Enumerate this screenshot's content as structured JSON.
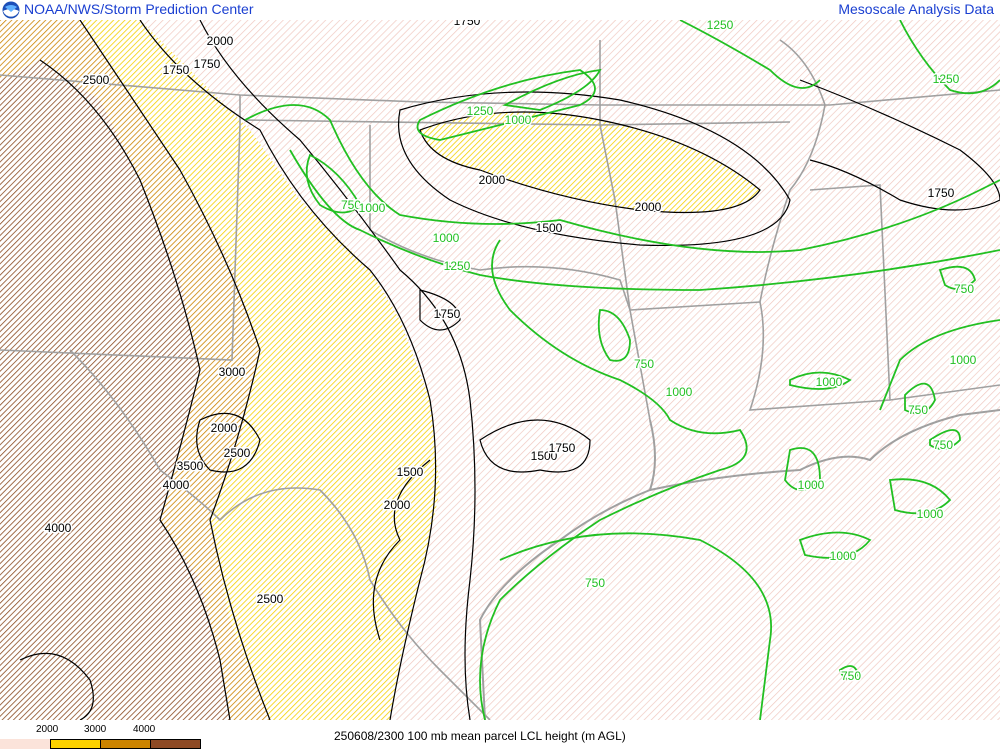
{
  "header": {
    "left_title": "NOAA/NWS/Storm Prediction Center",
    "right_title": "Mesoscale Analysis Data",
    "logo_icon": "noaa-logo-icon"
  },
  "map": {
    "parameter": "100 mb mean parcel LCL height",
    "units": "m AGL",
    "colors": {
      "contour_high": "#000000",
      "contour_low": "#22c022",
      "borders": "#a0a0a0",
      "hatch_base": "#f0c8c0",
      "hatch_2000": "#f5d000",
      "hatch_3000": "#cc8400",
      "hatch_4000": "#8a4a20"
    },
    "black_labels": [
      "1750",
      "2000",
      "1750",
      "1750",
      "2500",
      "2000",
      "2000",
      "1500",
      "1750",
      "1750",
      "3000",
      "2000",
      "2500",
      "3500",
      "4000",
      "4000",
      "1500",
      "1500",
      "1750",
      "2000",
      "2500"
    ],
    "green_labels": [
      "1250",
      "1250",
      "1250",
      "1000",
      "750",
      "1000",
      "1000",
      "1250",
      "750",
      "750",
      "1000",
      "1000",
      "1000",
      "750",
      "750",
      "1000",
      "1000",
      "1000",
      "750",
      "750"
    ]
  },
  "legend": {
    "ticks": [
      "2000",
      "3000",
      "4000"
    ],
    "colors": [
      "#fbe3da",
      "#fcd200",
      "#cc8400",
      "#8e4a24"
    ]
  },
  "footer": {
    "caption": "250608/2300 100 mb mean parcel LCL height (m AGL)"
  }
}
